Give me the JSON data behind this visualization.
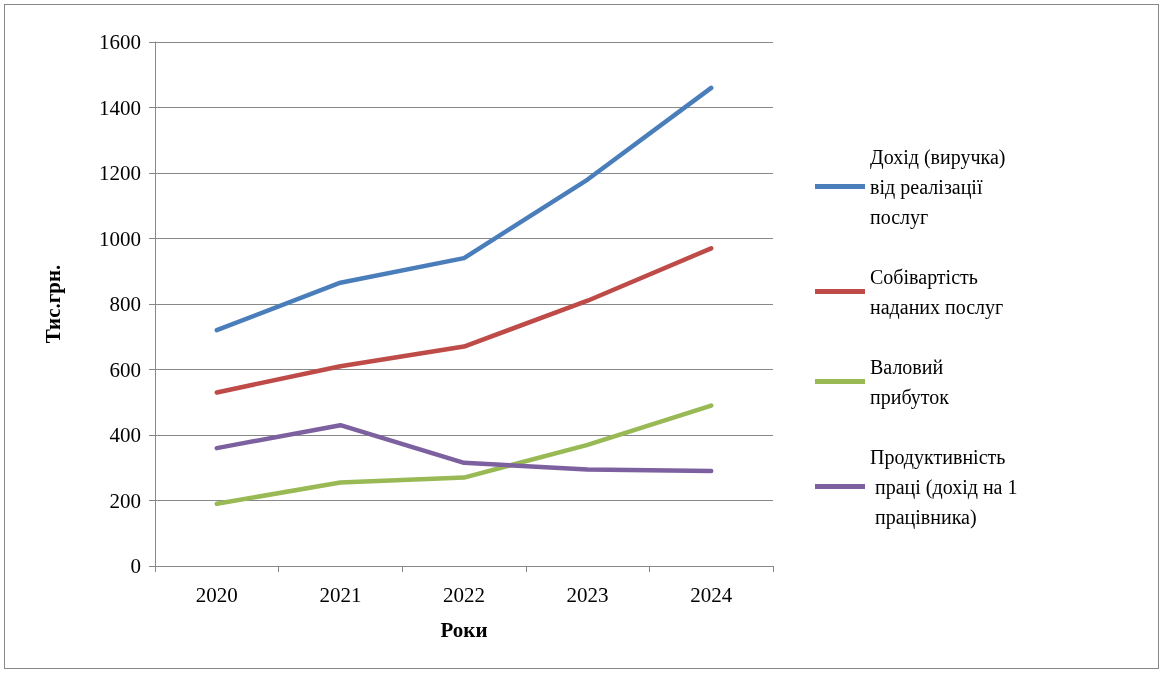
{
  "chart_data": {
    "type": "line",
    "xlabel": "Роки",
    "ylabel": "Тис.грн.",
    "categories": [
      "2020",
      "2021",
      "2022",
      "2023",
      "2024"
    ],
    "series": [
      {
        "name": "Дохід (виручка) від реалізації послуг",
        "color": "#4a7ebb",
        "values": [
          720,
          865,
          940,
          1180,
          1460
        ]
      },
      {
        "name": "Собівартість наданих послуг",
        "color": "#be4b48",
        "values": [
          530,
          610,
          670,
          810,
          970
        ]
      },
      {
        "name": "Валовий прибуток",
        "color": "#98b954",
        "values": [
          190,
          255,
          270,
          370,
          490
        ]
      },
      {
        "name": "Продуктивність праці (дохід на 1 працівника)",
        "color": "#7d60a0",
        "values": [
          360,
          430,
          315,
          295,
          290
        ]
      }
    ],
    "ylim": [
      0,
      1600
    ],
    "yticks": [
      0,
      200,
      400,
      600,
      800,
      1000,
      1200,
      1400,
      1600
    ],
    "grid": "y",
    "legend": "right",
    "marker": "none",
    "line_style": "solid"
  }
}
